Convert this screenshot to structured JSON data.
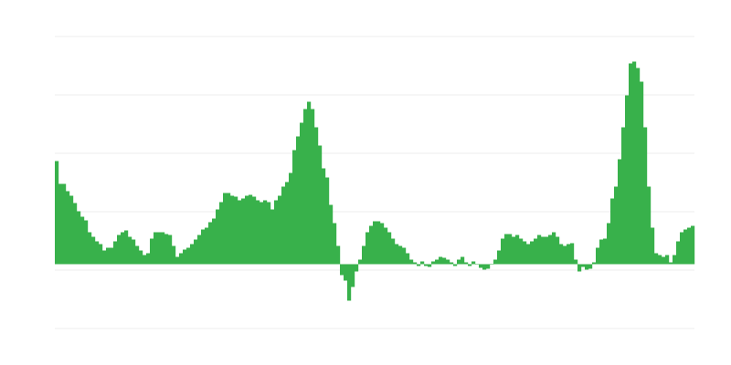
{
  "chart_data": {
    "type": "bar",
    "title": "",
    "xlabel": "",
    "ylabel": "",
    "ylim": [
      -70.5,
      249.5
    ],
    "gridlines": [
      249.5,
      185.5,
      121.5,
      57.5,
      -6.5,
      -70.5
    ],
    "grid": true,
    "color": "#38b14b",
    "grid_color": "#eeeeee",
    "values": [
      113,
      88,
      88,
      80,
      75,
      67,
      58,
      52,
      48,
      35,
      30,
      25,
      22,
      15,
      18,
      18,
      25,
      32,
      35,
      37,
      30,
      27,
      20,
      15,
      10,
      12,
      28,
      35,
      35,
      35,
      33,
      32,
      20,
      8,
      12,
      16,
      18,
      22,
      27,
      32,
      38,
      40,
      46,
      50,
      60,
      68,
      78,
      78,
      75,
      74,
      70,
      72,
      75,
      76,
      74,
      70,
      68,
      70,
      68,
      60,
      70,
      75,
      85,
      90,
      100,
      125,
      140,
      155,
      170,
      178,
      170,
      150,
      130,
      105,
      95,
      65,
      45,
      20,
      -12,
      -18,
      -40,
      -25,
      -8,
      5,
      20,
      35,
      42,
      47,
      47,
      45,
      40,
      35,
      28,
      22,
      20,
      18,
      12,
      5,
      2,
      -2,
      3,
      -2,
      -3,
      3,
      5,
      8,
      7,
      5,
      2,
      -2,
      5,
      8,
      2,
      -2,
      3,
      0,
      -4,
      -6,
      -5,
      0,
      5,
      15,
      28,
      33,
      33,
      30,
      32,
      28,
      25,
      22,
      25,
      28,
      32,
      30,
      30,
      32,
      35,
      30,
      22,
      20,
      22,
      23,
      5,
      -8,
      -3,
      -6,
      -5,
      2,
      18,
      27,
      28,
      45,
      72,
      85,
      115,
      150,
      185,
      220,
      222,
      215,
      200,
      150,
      85,
      40,
      12,
      10,
      8,
      10,
      2,
      10,
      25,
      35,
      38,
      40,
      42
    ]
  }
}
